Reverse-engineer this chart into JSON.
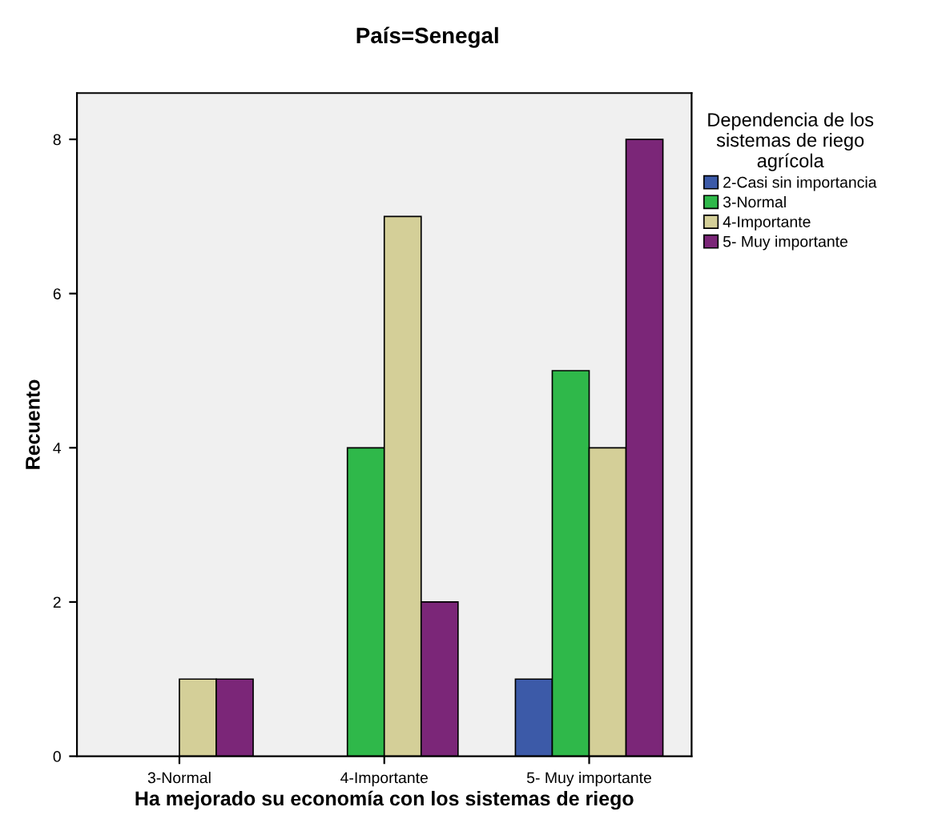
{
  "chart_data": {
    "type": "bar",
    "title": "País=Senegal",
    "xlabel": "Ha mejorado su economía con los sistemas de riego",
    "ylabel": "Recuento",
    "legend_title": "Dependencia de los\nsistemas de riego\nagrícola",
    "categories": [
      "3-Normal",
      "4-Importante",
      "5- Muy importante"
    ],
    "series": [
      {
        "name": "2-Casi sin importancia",
        "color": "#3c5aa8",
        "values": [
          null,
          null,
          1
        ]
      },
      {
        "name": "3-Normal",
        "color": "#2fb84a",
        "values": [
          null,
          4,
          5
        ]
      },
      {
        "name": "4-Importante",
        "color": "#d4cf98",
        "values": [
          1,
          7,
          4
        ]
      },
      {
        "name": "5- Muy importante",
        "color": "#7b2678",
        "values": [
          1,
          2,
          8
        ]
      }
    ],
    "ylim": [
      0,
      8.6
    ],
    "yticks": [
      0,
      2,
      4,
      6,
      8
    ],
    "grid": false,
    "legend": "top right"
  }
}
